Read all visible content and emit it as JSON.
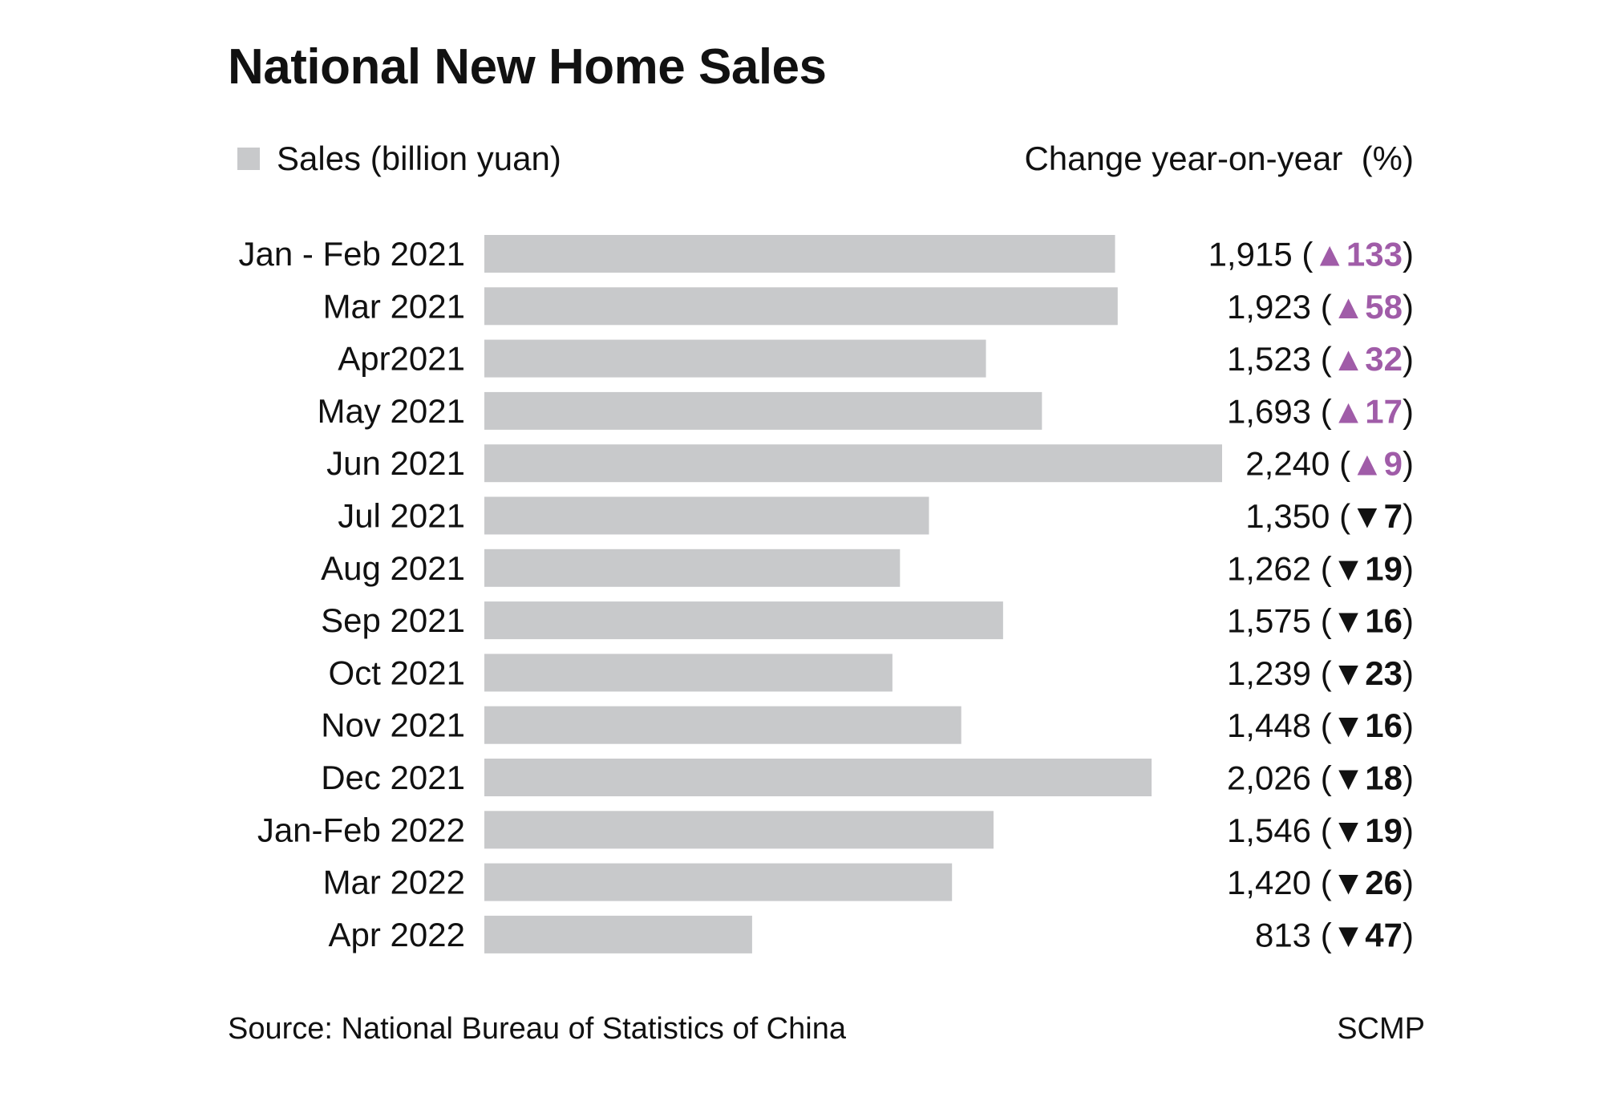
{
  "chart_data": {
    "type": "bar",
    "orientation": "horizontal",
    "title": "National New Home Sales",
    "legend": {
      "series_label": "Sales (billion yuan)",
      "change_label": "Change year-on-year  (%)"
    },
    "categories": [
      "Jan - Feb 2021",
      "Mar 2021",
      "Apr2021",
      "May 2021",
      "Jun 2021",
      "Jul 2021",
      "Aug 2021",
      "Sep 2021",
      "Oct 2021",
      "Nov 2021",
      "Dec 2021",
      "Jan-Feb 2022",
      "Mar 2022",
      "Apr 2022"
    ],
    "series": [
      {
        "name": "Sales (billion yuan)",
        "values": [
          1915,
          1923,
          1523,
          1693,
          2240,
          1350,
          1262,
          1575,
          1239,
          1448,
          2026,
          1546,
          1420,
          813
        ],
        "value_labels": [
          "1,915",
          "1,923",
          "1,523",
          "1,693",
          "2,240",
          "1,350",
          "1,262",
          "1,575",
          "1,239",
          "1,448",
          "2,026",
          "1,546",
          "1,420",
          "813"
        ]
      }
    ],
    "yoy_change": [
      133,
      58,
      32,
      17,
      9,
      -7,
      -19,
      -16,
      -23,
      -16,
      -18,
      -19,
      -26,
      -47
    ],
    "yoy_change_labels": [
      "133",
      "58",
      "32",
      "17",
      "9",
      "7",
      "19",
      "16",
      "23",
      "16",
      "18",
      "19",
      "26",
      "47"
    ],
    "xlim": [
      0,
      2240
    ],
    "grid": false,
    "legend_placement": "top-left"
  },
  "colors": {
    "bar": "#c8c9cb",
    "increase": "#a05ca8",
    "decrease": "#111111",
    "text": "#111111"
  },
  "footer": {
    "source": "Source: National Bureau of Statistics of China",
    "credit": "SCMP"
  }
}
